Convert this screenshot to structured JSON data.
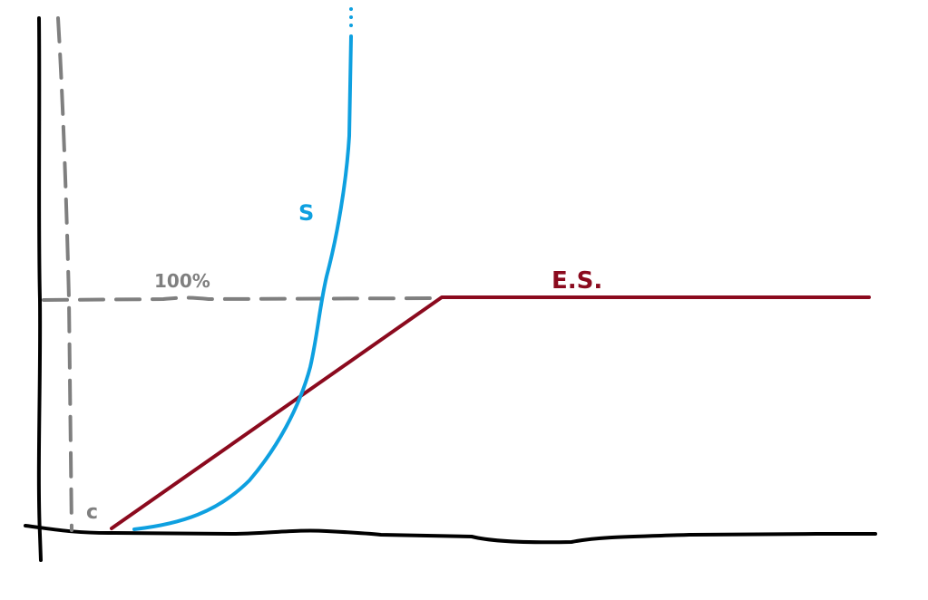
{
  "labels": {
    "percent": "100%",
    "c": "c",
    "s": "S",
    "es": "E.S."
  },
  "colors": {
    "axes": "#000000",
    "guides": "#7f7f7f",
    "s_curve": "#0ea0e0",
    "es_line": "#8b0a1e"
  }
}
